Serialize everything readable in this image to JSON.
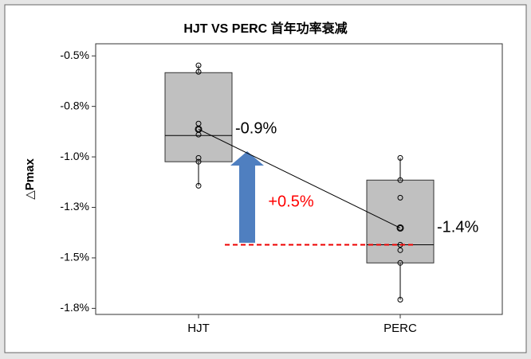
{
  "chart_data": {
    "type": "box",
    "title": "HJT VS PERC 首年功率衰减",
    "y_label": "△Pmax",
    "categories": [
      "HJT",
      "PERC"
    ],
    "q1": [
      -1.024,
      -1.525
    ],
    "median": [
      -0.894,
      -1.435
    ],
    "q3": [
      -0.583,
      -1.115
    ],
    "whisker_low": [
      -1.143,
      -1.707
    ],
    "whisker_high": [
      -0.547,
      -1.005
    ],
    "points": [
      [
        -0.547,
        -0.579,
        -0.835,
        -0.863,
        -0.89,
        -1.005,
        -1.024,
        -1.143
      ],
      [
        -1.005,
        -1.115,
        -1.202,
        -1.352,
        -1.435,
        -1.462,
        -1.525,
        -1.707
      ]
    ],
    "means": [
      -0.863,
      -1.352
    ],
    "value_labels": [
      "-0.9%",
      "-1.4%"
    ],
    "annotation": "+0.5%",
    "box_color": "#c0c0c0",
    "ylim": [
      -1.78,
      -0.44
    ],
    "yticks": [
      {
        "value": -0.5,
        "label": "-0.5%"
      },
      {
        "value": -0.75,
        "label": "-0.8%"
      },
      {
        "value": -1.0,
        "label": "-1.0%"
      },
      {
        "value": -1.25,
        "label": "-1.3%"
      },
      {
        "value": -1.5,
        "label": "-1.5%"
      },
      {
        "value": -1.75,
        "label": "-1.8%"
      }
    ]
  }
}
